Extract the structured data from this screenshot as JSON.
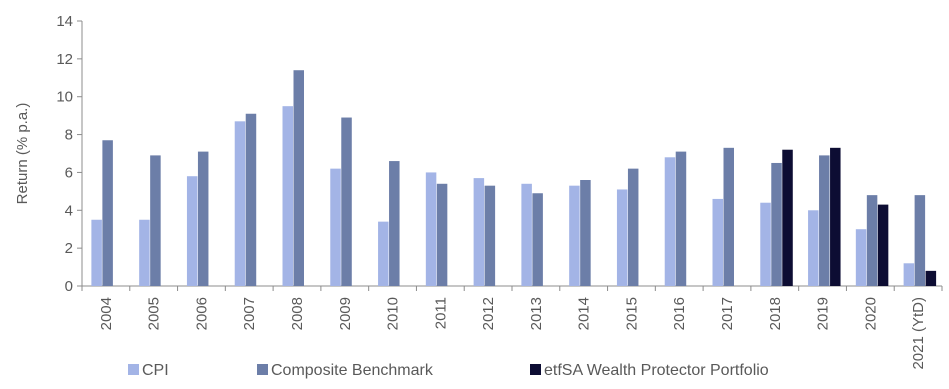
{
  "chart_data": {
    "type": "bar",
    "title": "",
    "xlabel": "",
    "ylabel": "Return (% p.a.)",
    "ylim": [
      0,
      14
    ],
    "yticks": [
      0,
      2,
      4,
      6,
      8,
      10,
      12,
      14
    ],
    "grid": false,
    "legend_position": "bottom",
    "categories": [
      "2004",
      "2005",
      "2006",
      "2007",
      "2008",
      "2009",
      "2010",
      "2011",
      "2012",
      "2013",
      "2014",
      "2015",
      "2016",
      "2017",
      "2018",
      "2019",
      "2020",
      "2021 (YtD)"
    ],
    "series": [
      {
        "name": "CPI",
        "color": "#a3b4e6",
        "values": [
          3.5,
          3.5,
          5.8,
          8.7,
          9.5,
          6.2,
          3.4,
          6.0,
          5.7,
          5.4,
          5.3,
          5.1,
          6.8,
          4.6,
          4.4,
          4.0,
          3.0,
          1.2
        ]
      },
      {
        "name": "Composite Benchmark",
        "color": "#6c7ea8",
        "values": [
          7.7,
          6.9,
          7.1,
          9.1,
          11.4,
          8.9,
          6.6,
          5.4,
          5.3,
          4.9,
          5.6,
          6.2,
          7.1,
          7.3,
          6.5,
          6.9,
          4.8,
          4.8
        ]
      },
      {
        "name": "etfSA Wealth Protector Portfolio",
        "color": "#0d0d33",
        "values": [
          null,
          null,
          null,
          null,
          null,
          null,
          null,
          null,
          null,
          null,
          null,
          null,
          null,
          null,
          7.2,
          7.3,
          4.3,
          0.8
        ]
      }
    ]
  }
}
